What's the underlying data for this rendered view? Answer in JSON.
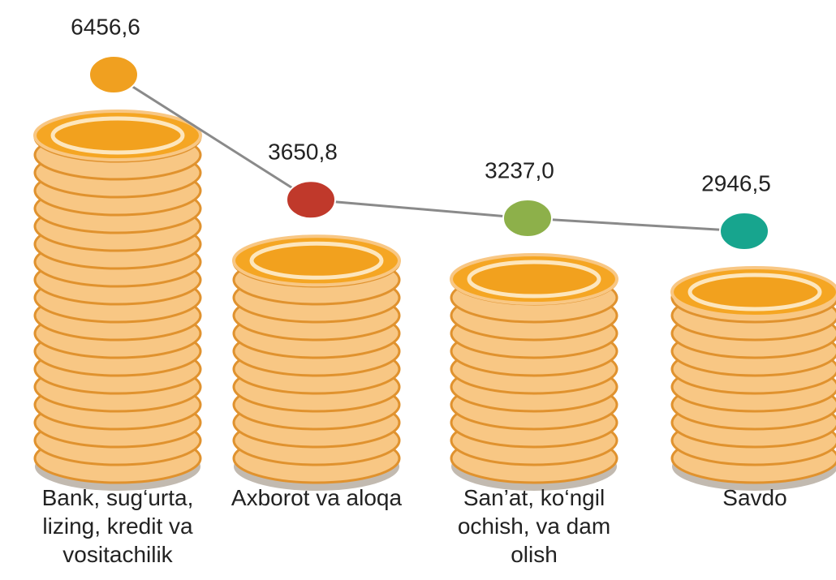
{
  "chart_data": {
    "type": "coin-line",
    "categories": [
      "Bank, sug‘urta, lizing, kredit va vositachilik",
      "Axborot va aloqa",
      "San’at, ko‘ngil ochish, va dam olish",
      "Savdo"
    ],
    "values": [
      6456.6,
      3650.8,
      3237.0,
      2946.5
    ],
    "value_labels": [
      "6456,6",
      "3650,8",
      "3237,0",
      "2946,5"
    ],
    "colors": [
      "#f0a020",
      "#c0392b",
      "#8db04a",
      "#17a58e"
    ],
    "line_color": "#8a8a8a"
  }
}
